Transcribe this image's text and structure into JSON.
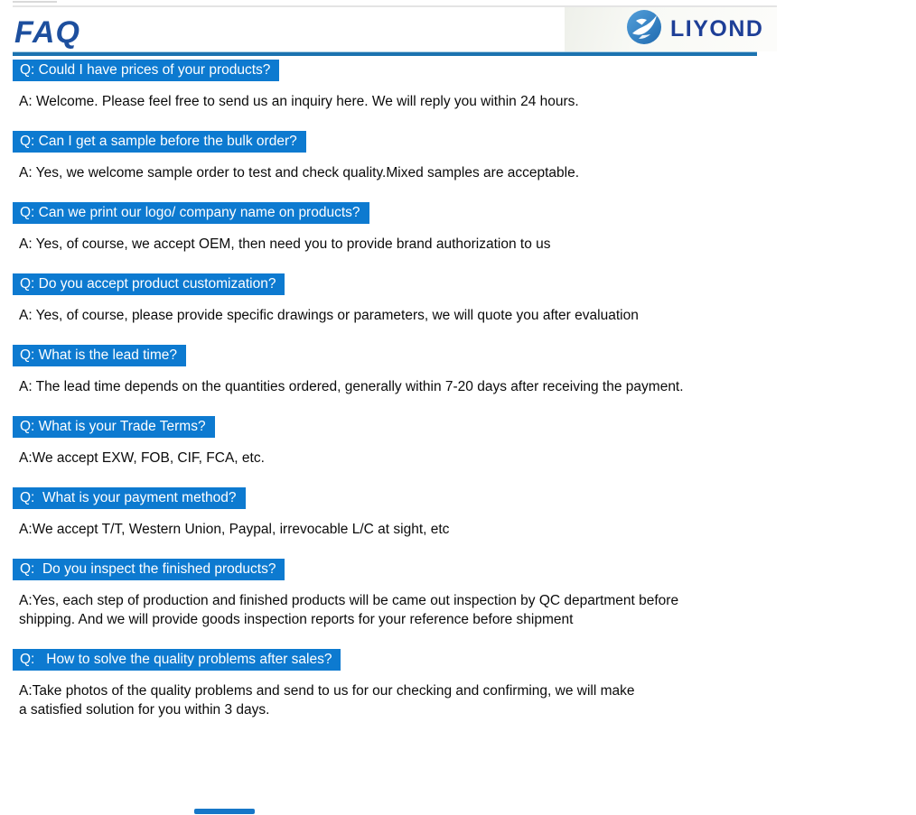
{
  "header": {
    "title": "FAQ",
    "brand": "LIYOND",
    "logo_icon": "liyond-swoosh-circle-icon",
    "colors": {
      "title_navy": "#1d4f9e",
      "brand_navy": "#1e3f97",
      "underline_blue": "#1c73b0",
      "logo_circle_blue": "#2f83c5"
    }
  },
  "faq": {
    "banner_color": "#0d7ad0",
    "banner_text_color": "#ffffff",
    "items": [
      {
        "question": "Q: Could I have prices of your products?",
        "answer_lines": [
          "A: Welcome. Please feel free to send us an inquiry here. We will reply you within 24 hours."
        ]
      },
      {
        "question": "Q: Can I get a sample before the bulk order?",
        "answer_lines": [
          "A: Yes, we welcome sample order to test and check quality.Mixed samples are acceptable."
        ]
      },
      {
        "question": "Q: Can we print our logo/ company name on products?",
        "answer_lines": [
          "A: Yes, of course, we accept OEM, then need you to provide brand authorization to us"
        ]
      },
      {
        "question": "Q: Do you accept product customization?",
        "answer_lines": [
          "A: Yes, of course, please provide specific drawings or parameters, we will quote you after evaluation"
        ]
      },
      {
        "question": "Q: What is the lead time?",
        "answer_lines": [
          "A: The lead time depends on the quantities ordered, generally within 7-20 days after receiving the payment."
        ]
      },
      {
        "question": "Q: What is your Trade Terms?",
        "answer_lines": [
          "A:We accept EXW, FOB, CIF, FCA, etc."
        ]
      },
      {
        "question": "Q:  What is your payment method?",
        "answer_lines": [
          "A:We accept T/T, Western Union, Paypal, irrevocable L/C at sight, etc"
        ]
      },
      {
        "question": "Q:  Do you inspect the finished products?",
        "answer_lines": [
          "A:Yes, each step of production and finished products will be came out inspection by QC department before",
          "shipping. And we will provide goods inspection reports for your reference before shipment"
        ]
      },
      {
        "question": "Q:   How to solve the quality problems after sales?",
        "answer_lines": [
          "A:Take photos of the quality problems and send to us for our checking and confirming, we will make",
          "a satisfied solution for you within 3 days."
        ]
      }
    ]
  }
}
